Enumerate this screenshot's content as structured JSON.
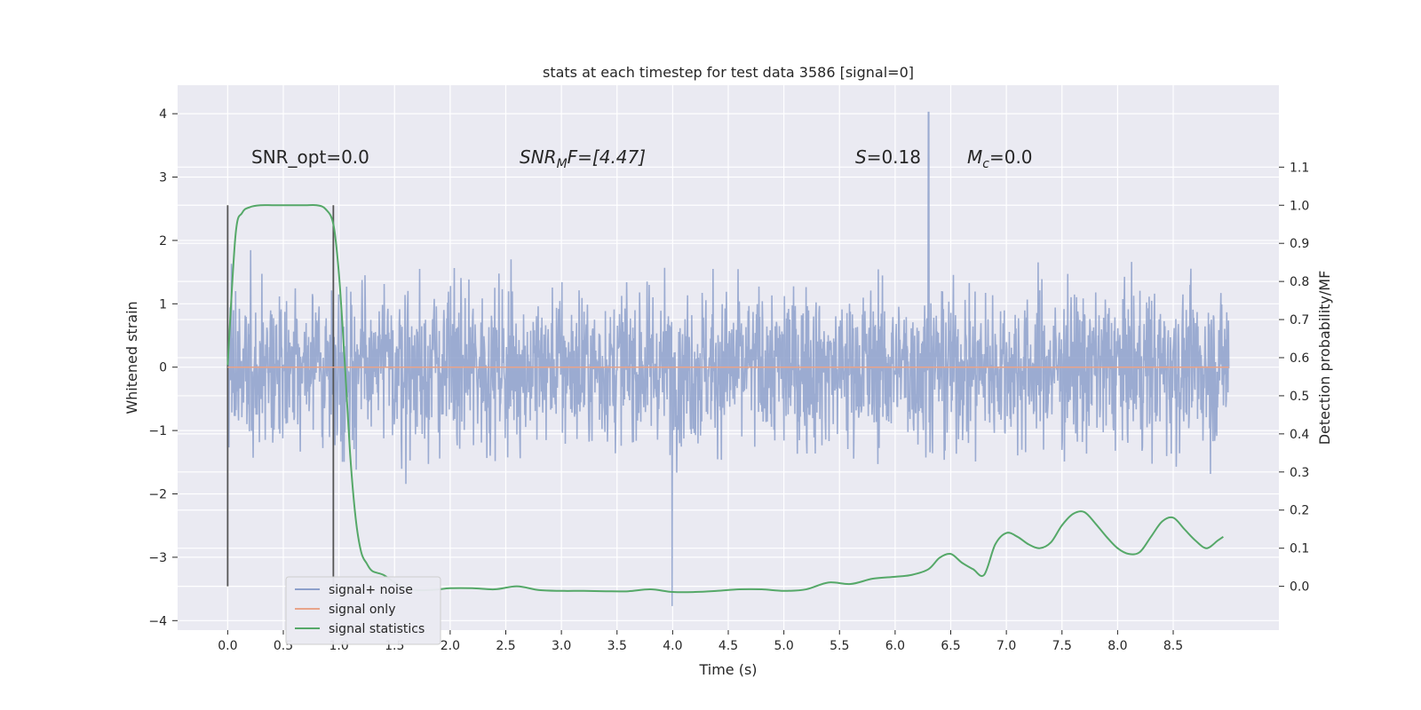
{
  "chart_data": {
    "type": "line",
    "title": "stats at each timestep for test data 3586 [signal=0]",
    "xlabel": "Time (s)",
    "ylabel": "Whitened strain",
    "y2label": "Detection probability/MF",
    "xlim": [
      -0.45,
      9.45
    ],
    "ylim": [
      -4.15,
      4.45
    ],
    "y2lim": [
      -0.115,
      1.315
    ],
    "x_ticks": [
      "0.0",
      "0.5",
      "1.0",
      "1.5",
      "2.0",
      "2.5",
      "3.0",
      "3.5",
      "4.0",
      "4.5",
      "5.0",
      "5.5",
      "6.0",
      "6.5",
      "7.0",
      "7.5",
      "8.0",
      "8.5"
    ],
    "y_ticks": [
      "4",
      "3",
      "2",
      "1",
      "0",
      "−1",
      "−2",
      "−3",
      "−4"
    ],
    "y2_ticks": [
      "1.1",
      "1.0",
      "0.9",
      "0.8",
      "0.7",
      "0.6",
      "0.5",
      "0.4",
      "0.3",
      "0.2",
      "0.1",
      "0.0"
    ],
    "grid": true,
    "legend_position": "lower-left",
    "annotations": {
      "snr_opt": "SNR_opt=0.0",
      "snr_mf_base": "SNR",
      "snr_mf_sub": "M",
      "snr_mf_rest": "F=[4.47]",
      "s_base": "S",
      "s_rest": "=0.18",
      "mc_base": "M",
      "mc_sub": "c",
      "mc_rest": "=0.0"
    },
    "window_markers_x": [
      0.0,
      0.95
    ],
    "series": [
      {
        "name": "signal+ noise",
        "color": "#8da0cb",
        "axis": "left",
        "t_range": [
          0.0,
          9.0
        ],
        "typical_amplitude": 1.2,
        "max_value": 4.02,
        "min_value": -3.77
      },
      {
        "name": "signal only",
        "color": "#e8a48a",
        "axis": "left",
        "x": [
          0.0,
          9.0
        ],
        "y": [
          0.0,
          0.0
        ]
      },
      {
        "name": "signal statistics",
        "color": "#55a868",
        "axis": "right",
        "x": [
          0.0,
          0.07,
          0.13,
          0.2,
          0.3,
          0.4,
          0.5,
          0.6,
          0.7,
          0.8,
          0.88,
          0.95,
          1.0,
          1.05,
          1.1,
          1.15,
          1.2,
          1.25,
          1.3,
          1.4,
          1.5,
          1.6,
          1.7,
          1.8,
          1.9,
          2.0,
          2.2,
          2.4,
          2.6,
          2.8,
          3.0,
          3.2,
          3.4,
          3.6,
          3.8,
          4.0,
          4.2,
          4.4,
          4.6,
          4.8,
          5.0,
          5.2,
          5.4,
          5.6,
          5.8,
          6.0,
          6.15,
          6.3,
          6.4,
          6.5,
          6.6,
          6.7,
          6.8,
          6.9,
          7.0,
          7.1,
          7.2,
          7.3,
          7.4,
          7.5,
          7.6,
          7.7,
          7.8,
          7.9,
          8.0,
          8.1,
          8.2,
          8.3,
          8.4,
          8.5,
          8.6,
          8.7,
          8.8,
          8.9,
          8.95
        ],
        "y": [
          0.58,
          0.92,
          0.98,
          0.995,
          1.0,
          1.0,
          1.0,
          1.0,
          1.0,
          1.0,
          0.99,
          0.95,
          0.82,
          0.6,
          0.35,
          0.18,
          0.09,
          0.06,
          0.04,
          0.03,
          0.01,
          -0.005,
          -0.01,
          -0.01,
          -0.008,
          -0.005,
          -0.005,
          -0.008,
          0.0,
          -0.01,
          -0.012,
          -0.012,
          -0.013,
          -0.013,
          -0.008,
          -0.015,
          -0.015,
          -0.012,
          -0.008,
          -0.008,
          -0.012,
          -0.008,
          0.01,
          0.006,
          0.02,
          0.025,
          0.03,
          0.045,
          0.075,
          0.085,
          0.062,
          0.045,
          0.03,
          0.11,
          0.14,
          0.13,
          0.11,
          0.1,
          0.115,
          0.16,
          0.19,
          0.195,
          0.165,
          0.13,
          0.1,
          0.085,
          0.09,
          0.13,
          0.17,
          0.18,
          0.15,
          0.12,
          0.1,
          0.12,
          0.13
        ]
      }
    ]
  }
}
